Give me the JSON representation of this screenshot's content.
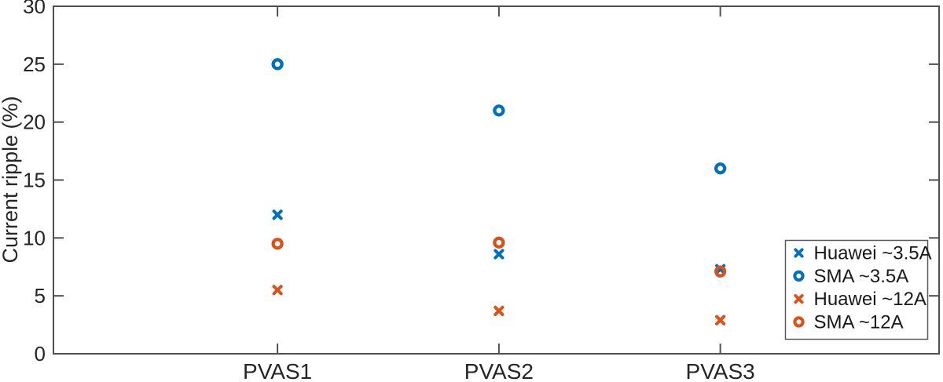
{
  "figure": {
    "background": "#ffffff",
    "axis_color": "#4f4f4f",
    "tick_label_color": "#262626",
    "legend_border_color": "#5a5a5a",
    "legend_text_color": "#1a1a1a"
  },
  "chart_data": {
    "type": "scatter",
    "title": "",
    "xlabel": "",
    "ylabel": "Current ripple (%)",
    "categories": [
      "PVAS1",
      "PVAS2",
      "PVAS3"
    ],
    "ylim": [
      0,
      30
    ],
    "y_ticks": [
      0,
      5,
      10,
      15,
      20,
      25,
      30
    ],
    "grid": false,
    "legend": {
      "position": "inside-lower-right",
      "entries": [
        "Huawei ~3.5A",
        "SMA ~3.5A",
        "Huawei ~12A",
        "SMA ~12A"
      ]
    },
    "series": [
      {
        "name": "Huawei ~3.5A",
        "marker": "x",
        "color": "#0072BD",
        "values": [
          12.0,
          8.6,
          7.3
        ]
      },
      {
        "name": "SMA ~3.5A",
        "marker": "o",
        "color": "#0072BD",
        "values": [
          25.0,
          21.0,
          16.0
        ]
      },
      {
        "name": "Huawei ~12A",
        "marker": "x",
        "color": "#D95319",
        "values": [
          5.5,
          3.7,
          2.9
        ]
      },
      {
        "name": "SMA ~12A",
        "marker": "o",
        "color": "#D95319",
        "values": [
          9.5,
          9.6,
          7.1
        ]
      }
    ]
  }
}
